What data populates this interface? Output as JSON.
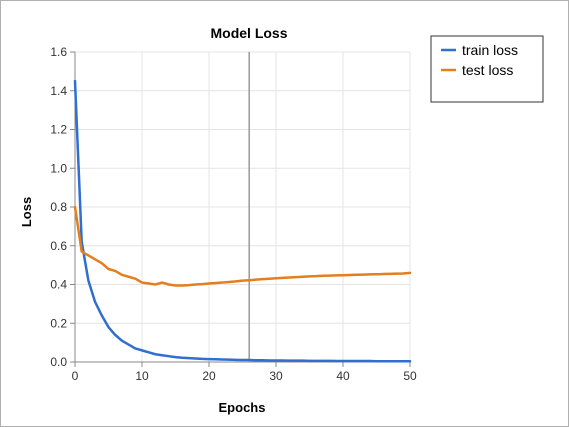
{
  "chart_data": {
    "type": "line",
    "title": "Model Loss",
    "xlabel": "Epochs",
    "ylabel": "Loss",
    "xlim": [
      0,
      50
    ],
    "ylim": [
      0,
      1.6
    ],
    "xticks": [
      0,
      10,
      20,
      30,
      40,
      50
    ],
    "yticks": [
      0.0,
      0.2,
      0.4,
      0.6,
      0.8,
      1.0,
      1.2,
      1.4,
      1.6
    ],
    "grid": true,
    "legend_position": "outside-right-top",
    "cursor_x": 26,
    "series": [
      {
        "name": "train loss",
        "color": "#2f6fd0",
        "x": [
          0,
          1,
          2,
          3,
          4,
          5,
          6,
          7,
          8,
          9,
          10,
          11,
          12,
          13,
          14,
          15,
          16,
          17,
          18,
          19,
          20,
          21,
          22,
          23,
          24,
          25,
          26,
          27,
          28,
          29,
          30,
          31,
          32,
          33,
          34,
          35,
          36,
          37,
          38,
          39,
          40,
          41,
          42,
          43,
          44,
          45,
          46,
          47,
          48,
          49,
          50
        ],
        "values": [
          1.45,
          0.62,
          0.42,
          0.31,
          0.24,
          0.18,
          0.14,
          0.11,
          0.09,
          0.07,
          0.06,
          0.05,
          0.04,
          0.035,
          0.03,
          0.025,
          0.022,
          0.02,
          0.018,
          0.016,
          0.015,
          0.014,
          0.013,
          0.012,
          0.011,
          0.01,
          0.01,
          0.009,
          0.009,
          0.008,
          0.008,
          0.008,
          0.007,
          0.007,
          0.007,
          0.006,
          0.006,
          0.006,
          0.006,
          0.005,
          0.005,
          0.005,
          0.005,
          0.005,
          0.005,
          0.004,
          0.004,
          0.004,
          0.004,
          0.004,
          0.004
        ]
      },
      {
        "name": "test loss",
        "color": "#e37f1c",
        "x": [
          0,
          1,
          2,
          3,
          4,
          5,
          6,
          7,
          8,
          9,
          10,
          11,
          12,
          13,
          14,
          15,
          16,
          17,
          18,
          19,
          20,
          21,
          22,
          23,
          24,
          25,
          26,
          27,
          28,
          29,
          30,
          31,
          32,
          33,
          34,
          35,
          36,
          37,
          38,
          39,
          40,
          41,
          42,
          43,
          44,
          45,
          46,
          47,
          48,
          49,
          50
        ],
        "values": [
          0.8,
          0.57,
          0.55,
          0.53,
          0.51,
          0.48,
          0.47,
          0.45,
          0.44,
          0.43,
          0.41,
          0.405,
          0.4,
          0.41,
          0.4,
          0.395,
          0.395,
          0.397,
          0.4,
          0.402,
          0.405,
          0.408,
          0.41,
          0.413,
          0.416,
          0.42,
          0.422,
          0.425,
          0.428,
          0.43,
          0.432,
          0.434,
          0.436,
          0.438,
          0.44,
          0.442,
          0.443,
          0.445,
          0.446,
          0.447,
          0.448,
          0.449,
          0.45,
          0.451,
          0.452,
          0.453,
          0.454,
          0.455,
          0.456,
          0.457,
          0.46
        ]
      }
    ]
  }
}
